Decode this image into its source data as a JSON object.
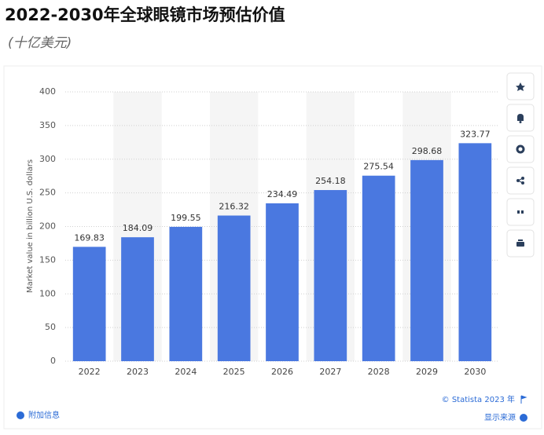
{
  "chart_data": {
    "type": "bar",
    "title": "2022-2030年全球眼镜市场预估价值",
    "subtitle": "(十亿美元)",
    "y_label": "Market value in billion U.S. dollars",
    "categories": [
      "2022",
      "2023",
      "2024",
      "2025",
      "2026",
      "2027",
      "2028",
      "2029",
      "2030"
    ],
    "values": [
      169.83,
      184.09,
      199.55,
      216.32,
      234.49,
      254.18,
      275.54,
      298.68,
      323.77
    ],
    "color": "#4a78e0",
    "ylim": [
      0,
      400
    ],
    "yticks": [
      0,
      50,
      100,
      150,
      200,
      250,
      300,
      350,
      400
    ],
    "grid": true,
    "copyright": "© Statista 2023 年",
    "source_link": "显示来源",
    "info_link": "附加信息"
  }
}
